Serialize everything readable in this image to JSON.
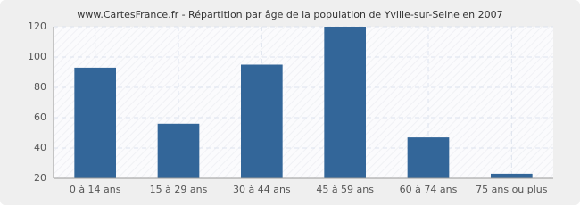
{
  "chart_data": {
    "type": "bar",
    "title": "www.CartesFrance.fr - Répartition par âge de la population de Yville-sur-Seine en 2007",
    "categories": [
      "0 à 14 ans",
      "15 à 29 ans",
      "30 à 44 ans",
      "45 à 59 ans",
      "60 à 74 ans",
      "75 ans ou plus"
    ],
    "values": [
      93,
      56,
      95,
      120,
      47,
      23
    ],
    "color": "#336699",
    "ylim": [
      20,
      120
    ],
    "yticks": [
      20,
      40,
      60,
      80,
      100,
      120
    ],
    "grid": true
  }
}
